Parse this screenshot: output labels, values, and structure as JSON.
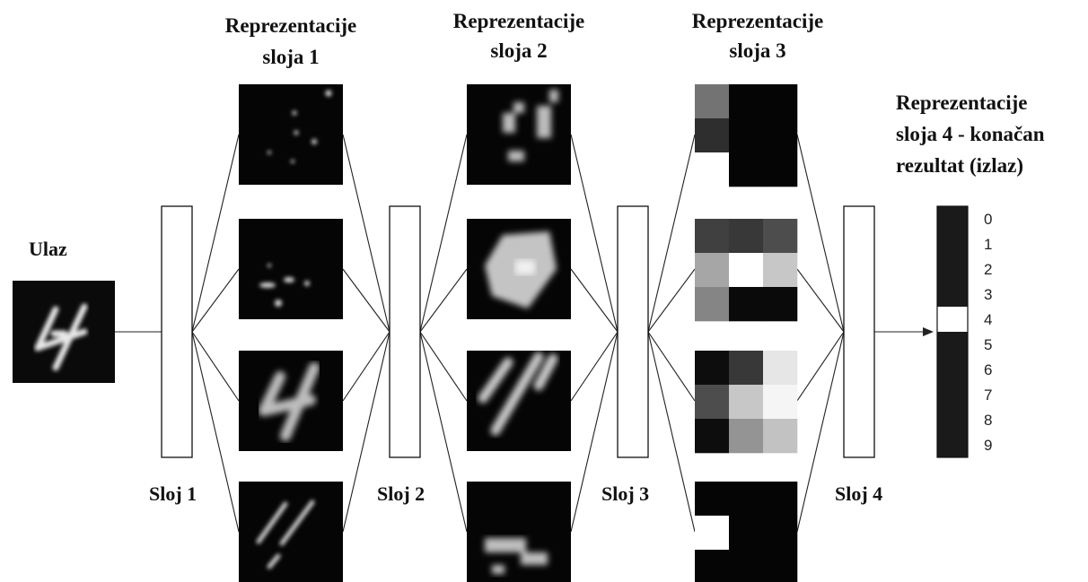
{
  "input": {
    "label": "Ulaz"
  },
  "layers": [
    {
      "label": "Sloj 1",
      "representation_title": [
        "Reprezentacije",
        "sloja 1"
      ]
    },
    {
      "label": "Sloj 2",
      "representation_title": [
        "Reprezentacije",
        "sloja 2"
      ]
    },
    {
      "label": "Sloj 3",
      "representation_title": [
        "Reprezentacije",
        "sloja 3"
      ]
    },
    {
      "label": "Sloj 4",
      "representation_title": [
        "Reprezentacije",
        "sloja 4 - konačan",
        "rezultat (izlaz)"
      ]
    }
  ],
  "output": {
    "digits": [
      "0",
      "1",
      "2",
      "3",
      "4",
      "5",
      "6",
      "7",
      "8",
      "9"
    ],
    "active_digit": "4",
    "inactive_color": "#1a1a1a",
    "active_color": "#ffffff"
  },
  "colors": {
    "line": "#222222",
    "feature_bg": "#050505"
  },
  "layer3_maps": [
    {
      "grid": [
        [
          0.45,
          0.02,
          0.02
        ],
        [
          0.18,
          0.02,
          0.02
        ],
        [
          1.0,
          0.02,
          0.02
        ]
      ]
    },
    {
      "grid": [
        [
          0.25,
          0.22,
          0.3
        ],
        [
          0.65,
          1.0,
          0.78
        ],
        [
          0.52,
          0.04,
          0.04
        ]
      ]
    },
    {
      "grid": [
        [
          0.05,
          0.22,
          0.9
        ],
        [
          0.3,
          0.78,
          0.96
        ],
        [
          0.05,
          0.58,
          0.76
        ]
      ]
    },
    {
      "grid": [
        [
          0.02,
          0.02,
          0.02
        ],
        [
          1.0,
          0.02,
          0.02
        ],
        [
          0.02,
          0.02,
          0.02
        ]
      ]
    }
  ]
}
